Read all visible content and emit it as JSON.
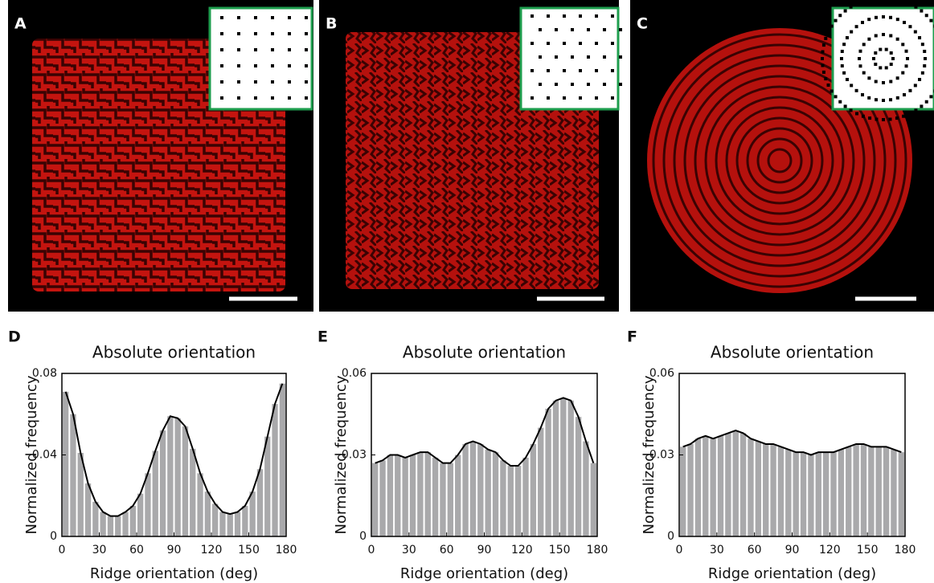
{
  "image_panels": [
    {
      "label": "A"
    },
    {
      "label": "B"
    },
    {
      "label": "C"
    }
  ],
  "chart_data": [
    {
      "type": "histogram",
      "panel_label": "D",
      "title": "Absolute orientation",
      "xlabel": "Ridge orientation (deg)",
      "ylabel": "Normalized frequency",
      "color": "#a9a9ab",
      "line_color": "#000000",
      "bins": [
        0,
        6,
        12,
        18,
        24,
        30,
        36,
        42,
        48,
        54,
        60,
        66,
        72,
        78,
        84,
        90,
        96,
        102,
        108,
        114,
        120,
        126,
        132,
        138,
        144,
        150,
        156,
        162,
        168,
        174,
        180
      ],
      "values": [
        0.071,
        0.06,
        0.041,
        0.026,
        0.017,
        0.012,
        0.01,
        0.01,
        0.012,
        0.015,
        0.021,
        0.031,
        0.042,
        0.052,
        0.059,
        0.058,
        0.054,
        0.043,
        0.031,
        0.022,
        0.016,
        0.012,
        0.011,
        0.012,
        0.015,
        0.022,
        0.033,
        0.049,
        0.065,
        0.075
      ],
      "xlim": [
        0,
        180
      ],
      "xticks": [
        0,
        30,
        60,
        90,
        120,
        150,
        180
      ],
      "ylim": [
        0,
        0.08
      ],
      "yticks": [
        0,
        0.04,
        0.08
      ]
    },
    {
      "type": "histogram",
      "panel_label": "E",
      "title": "Absolute orientation",
      "xlabel": "Ridge orientation (deg)",
      "ylabel": "Normalized frequency",
      "color": "#a9a9ab",
      "line_color": "#000000",
      "bins": [
        0,
        6,
        12,
        18,
        24,
        30,
        36,
        42,
        48,
        54,
        60,
        66,
        72,
        78,
        84,
        90,
        96,
        102,
        108,
        114,
        120,
        126,
        132,
        138,
        144,
        150,
        156,
        162,
        168,
        174,
        180
      ],
      "values": [
        0.027,
        0.028,
        0.03,
        0.03,
        0.029,
        0.03,
        0.031,
        0.031,
        0.029,
        0.027,
        0.027,
        0.03,
        0.034,
        0.035,
        0.034,
        0.032,
        0.031,
        0.028,
        0.026,
        0.026,
        0.029,
        0.034,
        0.04,
        0.047,
        0.05,
        0.051,
        0.05,
        0.044,
        0.035,
        0.027
      ],
      "xlim": [
        0,
        180
      ],
      "xticks": [
        0,
        30,
        60,
        90,
        120,
        150,
        180
      ],
      "ylim": [
        0,
        0.06
      ],
      "yticks": [
        0,
        0.03,
        0.06
      ]
    },
    {
      "type": "histogram",
      "panel_label": "F",
      "title": "Absolute orientation",
      "xlabel": "Ridge orientation (deg)",
      "ylabel": "Normalized frequency",
      "color": "#a9a9ab",
      "line_color": "#000000",
      "bins": [
        0,
        6,
        12,
        18,
        24,
        30,
        36,
        42,
        48,
        54,
        60,
        66,
        72,
        78,
        84,
        90,
        96,
        102,
        108,
        114,
        120,
        126,
        132,
        138,
        144,
        150,
        156,
        162,
        168,
        174,
        180
      ],
      "values": [
        0.033,
        0.034,
        0.036,
        0.037,
        0.036,
        0.037,
        0.038,
        0.039,
        0.038,
        0.036,
        0.035,
        0.034,
        0.034,
        0.033,
        0.032,
        0.031,
        0.031,
        0.03,
        0.031,
        0.031,
        0.031,
        0.032,
        0.033,
        0.034,
        0.034,
        0.033,
        0.033,
        0.033,
        0.032,
        0.031
      ],
      "xlim": [
        0,
        180
      ],
      "xticks": [
        0,
        30,
        60,
        90,
        120,
        150,
        180
      ],
      "ylim": [
        0,
        0.06
      ],
      "yticks": [
        0,
        0.03,
        0.06
      ]
    }
  ]
}
